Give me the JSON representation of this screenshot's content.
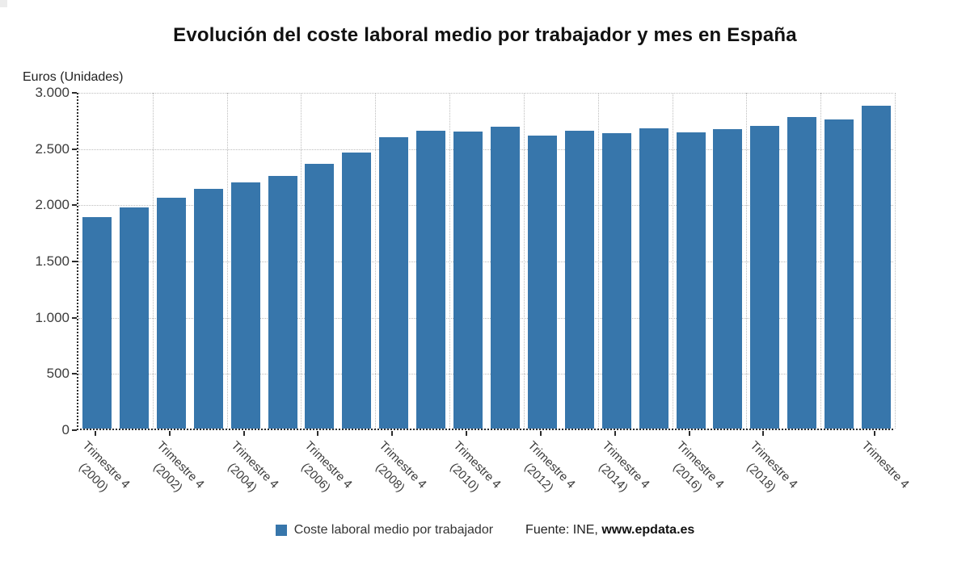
{
  "title": "Evolución del coste laboral medio por trabajador y mes en España",
  "colors": {
    "bar": "#3776ab",
    "axis": "#2b2b2b",
    "grid": "#bdbdbd",
    "text": "#3c3c3c"
  },
  "legend": {
    "series_label": "Coste laboral medio por trabajador"
  },
  "source": {
    "prefix": "Fuente: INE, ",
    "link": "www.epdata.es"
  },
  "chart_data": {
    "type": "bar",
    "title": "Evolución del coste laboral medio por trabajador y mes en España",
    "ylabel": "Euros (Unidades)",
    "xlabel": "",
    "ylim": [
      0,
      3000
    ],
    "grid": true,
    "legend_position": "bottom",
    "series_name": "Coste laboral medio por trabajador",
    "y_ticks": [
      {
        "label": "0",
        "value": 0
      },
      {
        "label": "500",
        "value": 500
      },
      {
        "label": "1.000",
        "value": 1000
      },
      {
        "label": "1.500",
        "value": 1500
      },
      {
        "label": "2.000",
        "value": 2000
      },
      {
        "label": "2.500",
        "value": 2500
      },
      {
        "label": "3.000",
        "value": 3000
      }
    ],
    "v_gridline_every": 2,
    "categories": [
      "Trimestre 4\n(2000)",
      "",
      "Trimestre 4\n(2002)",
      "",
      "Trimestre 4\n(2004)",
      "",
      "Trimestre 4\n(2006)",
      "",
      "Trimestre 4\n(2008)",
      "",
      "Trimestre 4\n(2010)",
      "",
      "Trimestre 4\n(2012)",
      "",
      "Trimestre 4\n(2014)",
      "",
      "Trimestre 4\n(2016)",
      "",
      "Trimestre 4\n(2018)",
      "",
      "",
      "Trimestre 4"
    ],
    "values": [
      1880,
      1964,
      2052,
      2132,
      2186,
      2250,
      2353,
      2457,
      2588,
      2649,
      2642,
      2684,
      2603,
      2652,
      2629,
      2671,
      2636,
      2665,
      2692,
      2770,
      2752,
      2872
    ]
  }
}
